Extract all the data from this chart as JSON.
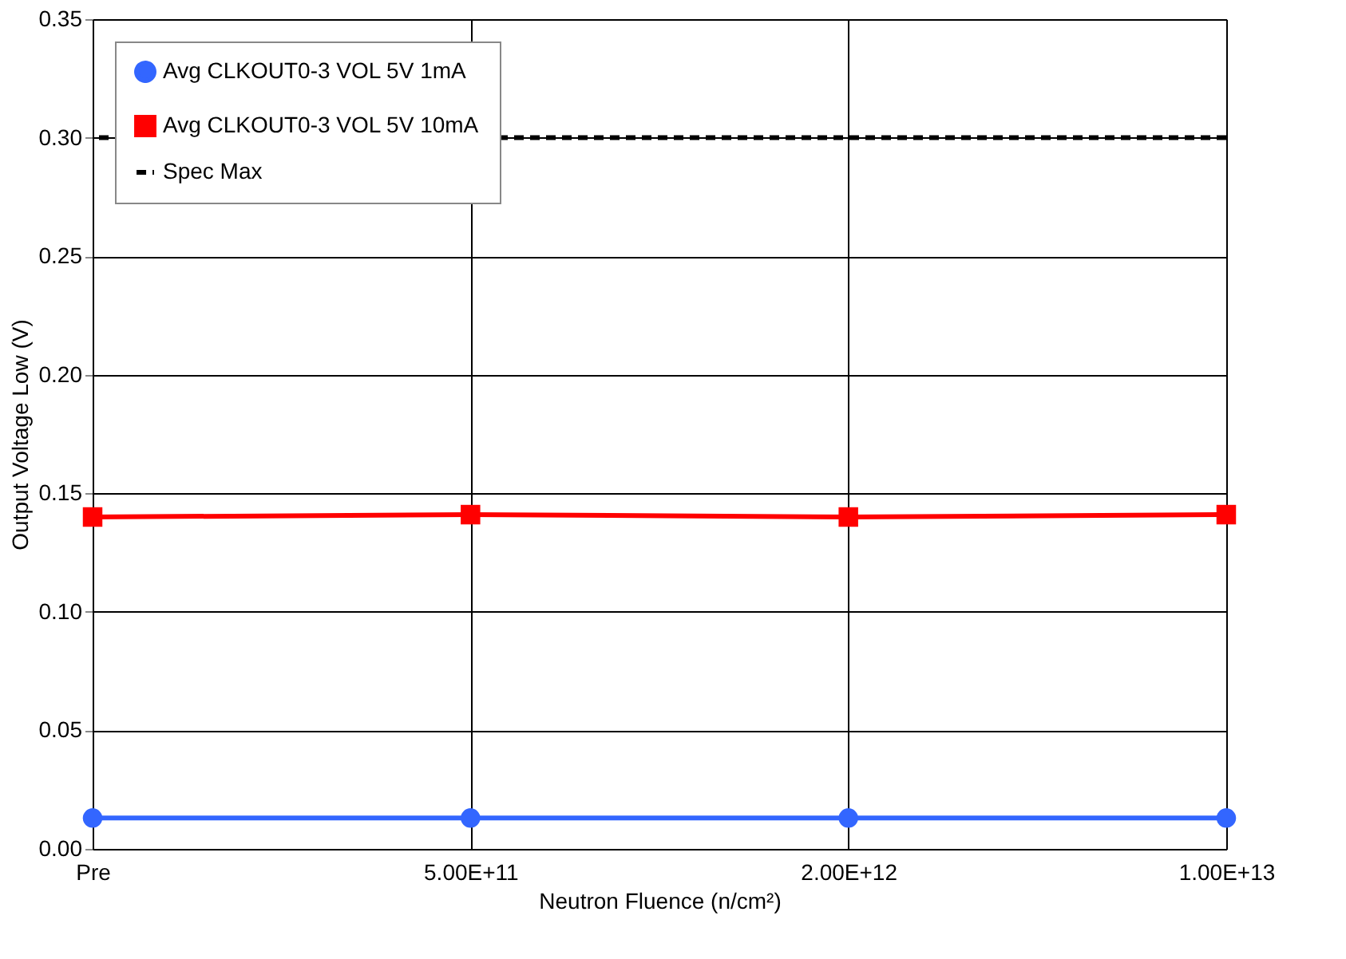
{
  "chart_data": {
    "type": "line",
    "xlabel": "Neutron Fluence (n/cm²)",
    "ylabel": "Output Voltage Low (V)",
    "categories": [
      "Pre",
      "5.00E+11",
      "2.00E+12",
      "1.00E+13"
    ],
    "series": [
      {
        "name": "Avg CLKOUT0-3 VOL 5V 1mA",
        "color": "#3366ff",
        "marker": "circle",
        "values": [
          0.013,
          0.013,
          0.013,
          0.013
        ]
      },
      {
        "name": "Avg CLKOUT0-3 VOL 5V 10mA",
        "color": "#ff0000",
        "marker": "square",
        "values": [
          0.14,
          0.141,
          0.14,
          0.141
        ]
      }
    ],
    "ref_lines": [
      {
        "axis": "y",
        "value": 0.3,
        "label": "Spec Max",
        "color": "#000000",
        "line_style": "dashed"
      }
    ],
    "ylim": [
      0,
      0.35
    ],
    "yticks": [
      {
        "value": 0,
        "label": "0.00"
      },
      {
        "value": 0.05,
        "label": "0.05"
      },
      {
        "value": 0.1,
        "label": "0.10"
      },
      {
        "value": 0.15,
        "label": "0.15"
      },
      {
        "value": 0.2,
        "label": "0.20"
      },
      {
        "value": 0.25,
        "label": "0.25"
      },
      {
        "value": 0.3,
        "label": "0.30"
      },
      {
        "value": 0.35,
        "label": "0.35"
      }
    ],
    "grid": true,
    "legend": "top left",
    "line_style": "solid"
  }
}
